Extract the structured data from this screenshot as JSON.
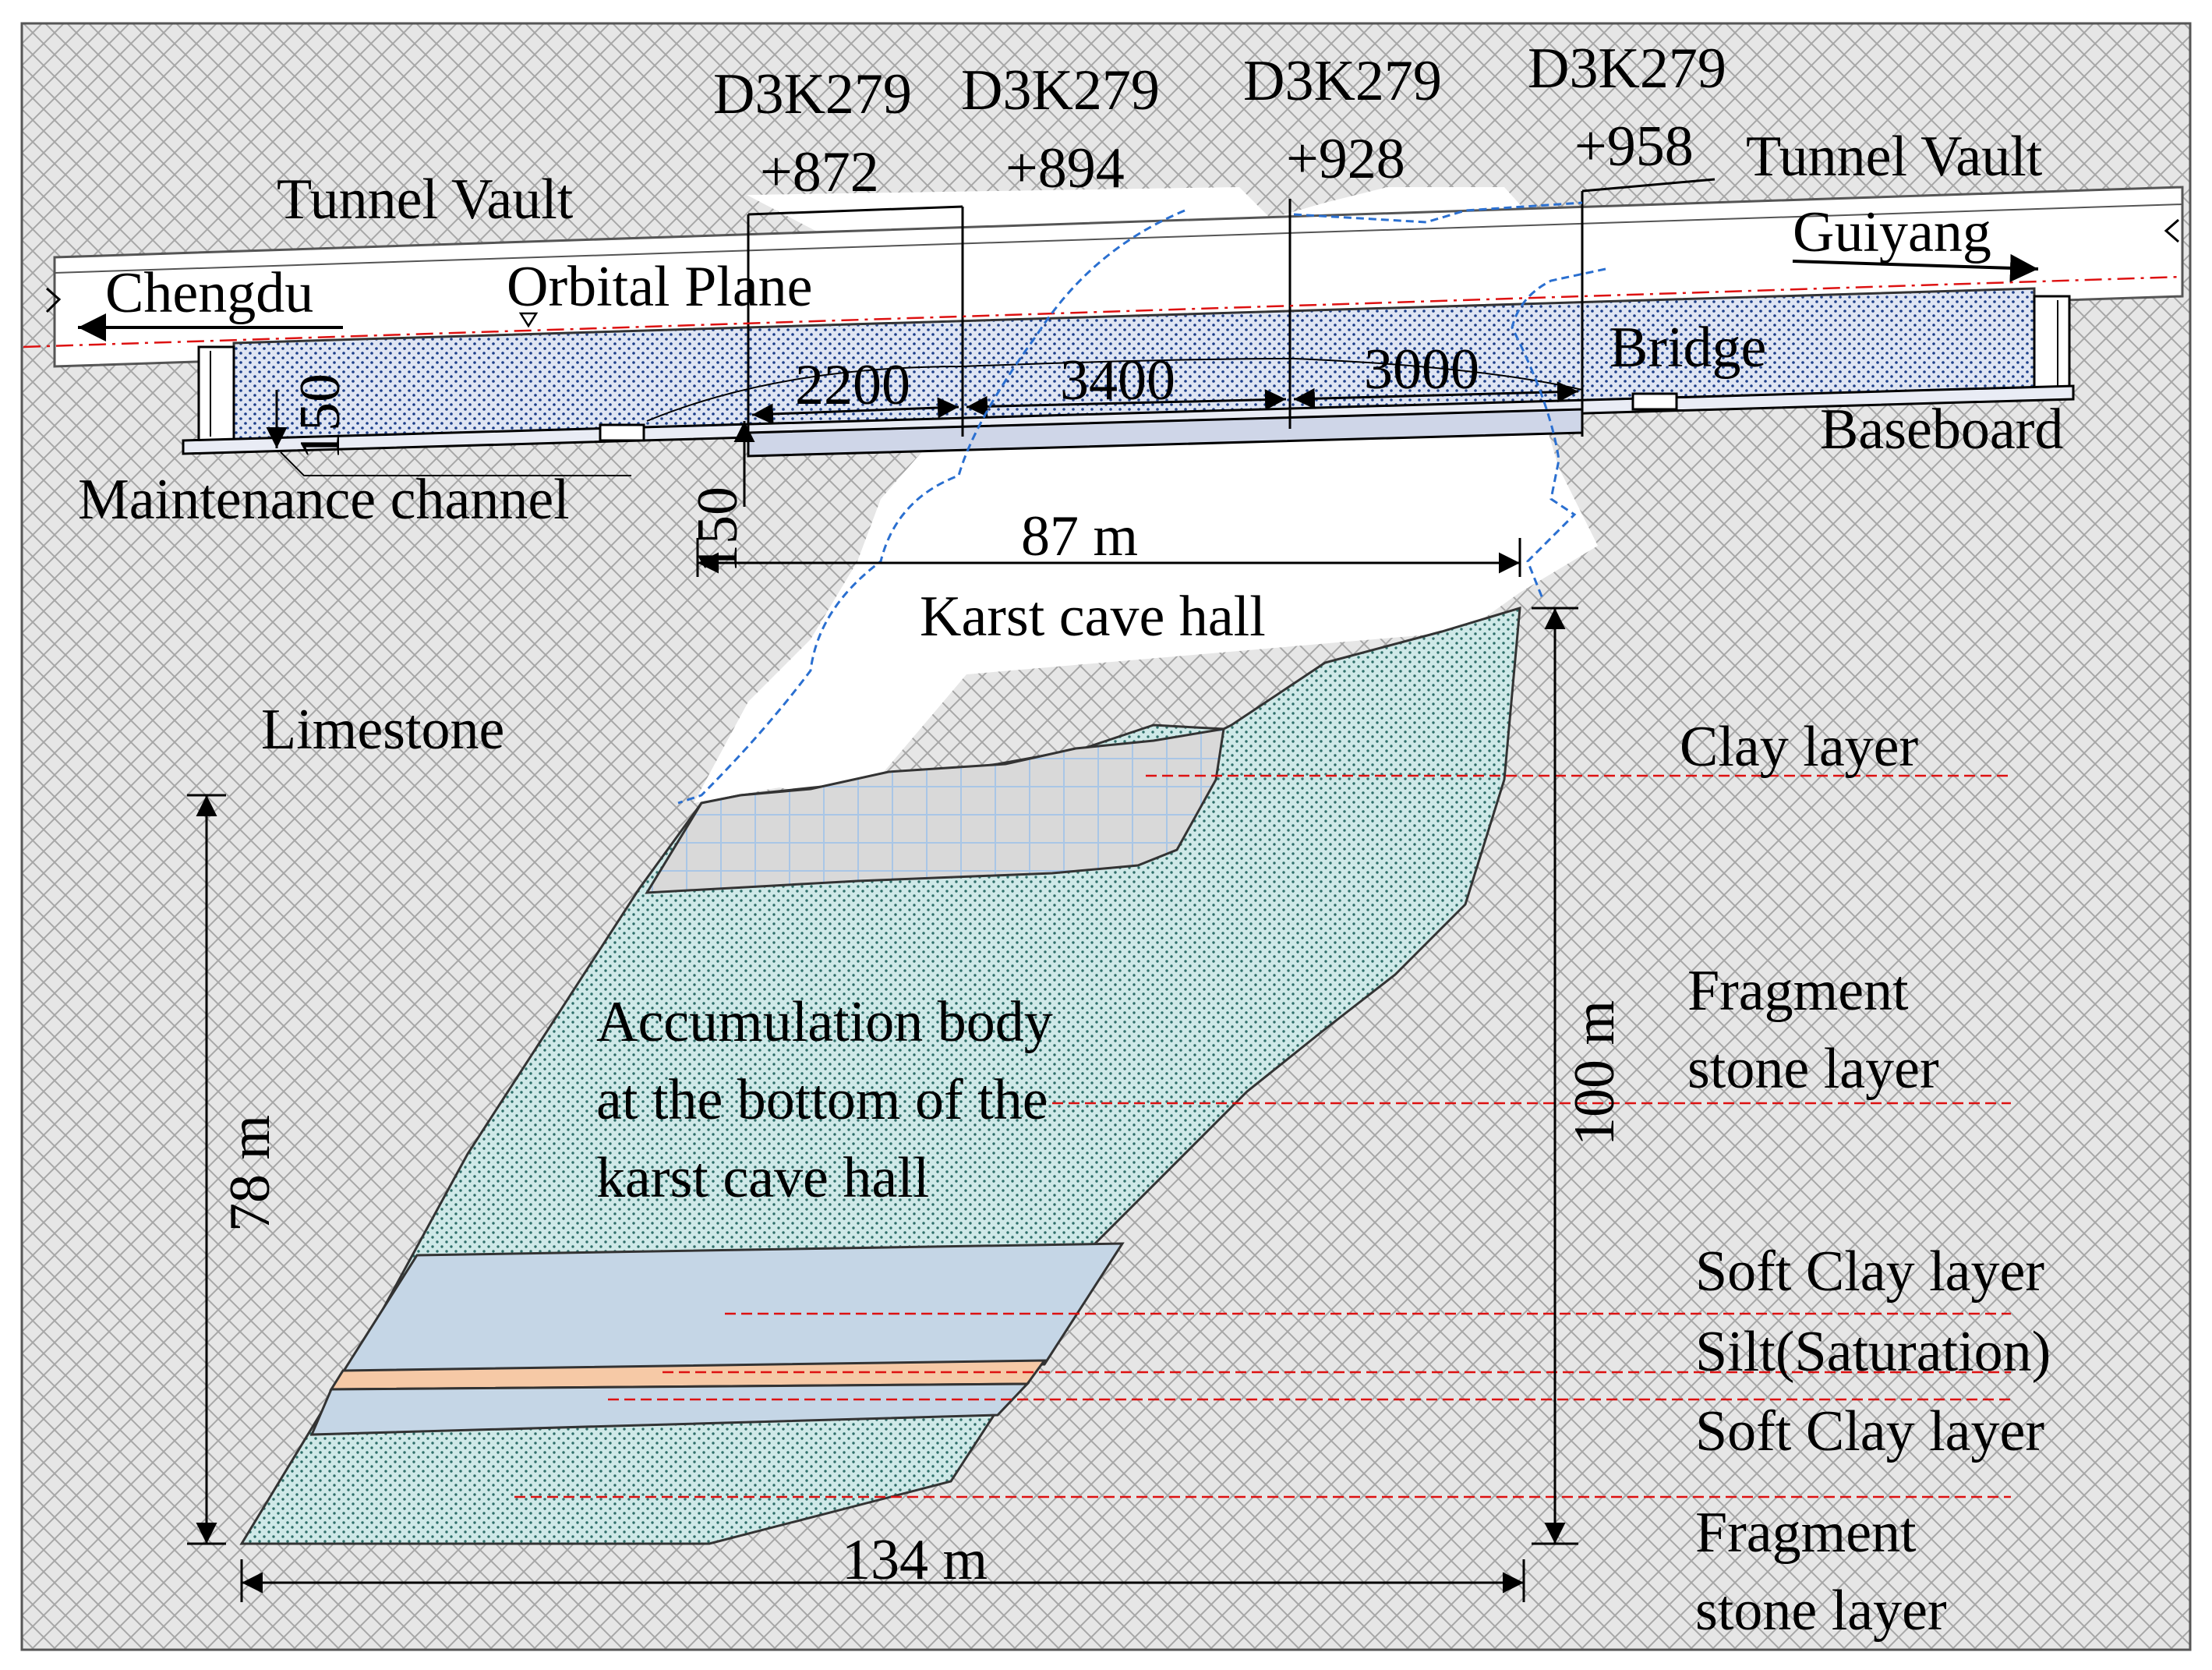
{
  "stations": [
    {
      "line1": "D3K279",
      "line2": "+872"
    },
    {
      "line1": "D3K279",
      "line2": "+894"
    },
    {
      "line1": "D3K279",
      "line2": "+928"
    },
    {
      "line1": "D3K279",
      "line2": "+958"
    }
  ],
  "labels": {
    "tunnel_vault_left": "Tunnel Vault",
    "tunnel_vault_right": "Tunnel Vault",
    "chengdu": "Chengdu",
    "guiyang": "Guiyang",
    "orbital_plane": "Orbital Plane",
    "bridge": "Bridge",
    "baseboard": "Baseboard",
    "maintenance_channel": "Maintenance channel",
    "karst_cave_hall": "Karst cave hall",
    "limestone": "Limestone",
    "accumulation_line1": "Accumulation body",
    "accumulation_line2": "at the bottom of the",
    "accumulation_line3": "karst cave hall"
  },
  "dimensions": {
    "span_2200": "2200",
    "span_3400": "3400",
    "span_3000": "3000",
    "dim_150_upper": "150",
    "dim_150_lower": "150",
    "width_87": "87 m",
    "height_100": "100 m",
    "height_78": "78 m",
    "width_134": "134 m"
  },
  "layers": [
    {
      "line1": "Clay layer",
      "line2": ""
    },
    {
      "line1": "Fragment",
      "line2": "stone layer"
    },
    {
      "line1": "Soft Clay layer",
      "line2": ""
    },
    {
      "line1": "Silt(Saturation)",
      "line2": ""
    },
    {
      "line1": "Soft Clay layer",
      "line2": ""
    },
    {
      "line1": "Fragment",
      "line2": "stone layer"
    }
  ],
  "colors": {
    "limestone_bg": "#e6e6e6",
    "limestone_hatch": "#a7a7a7",
    "fragment_fill": "#cfe9e8",
    "fragment_dot": "#2f6f6a",
    "clay_fill": "#d9d9d9",
    "clay_grid": "#a9c6e6",
    "soft_clay_fill": "#c5d6e6",
    "silt_fill": "#f6c9a6",
    "bridge_fill": "#dfe5f3",
    "bridge_dot": "#1d3f8a",
    "red_dashed": "#d11",
    "blue_dashed": "#2a6fd0"
  }
}
